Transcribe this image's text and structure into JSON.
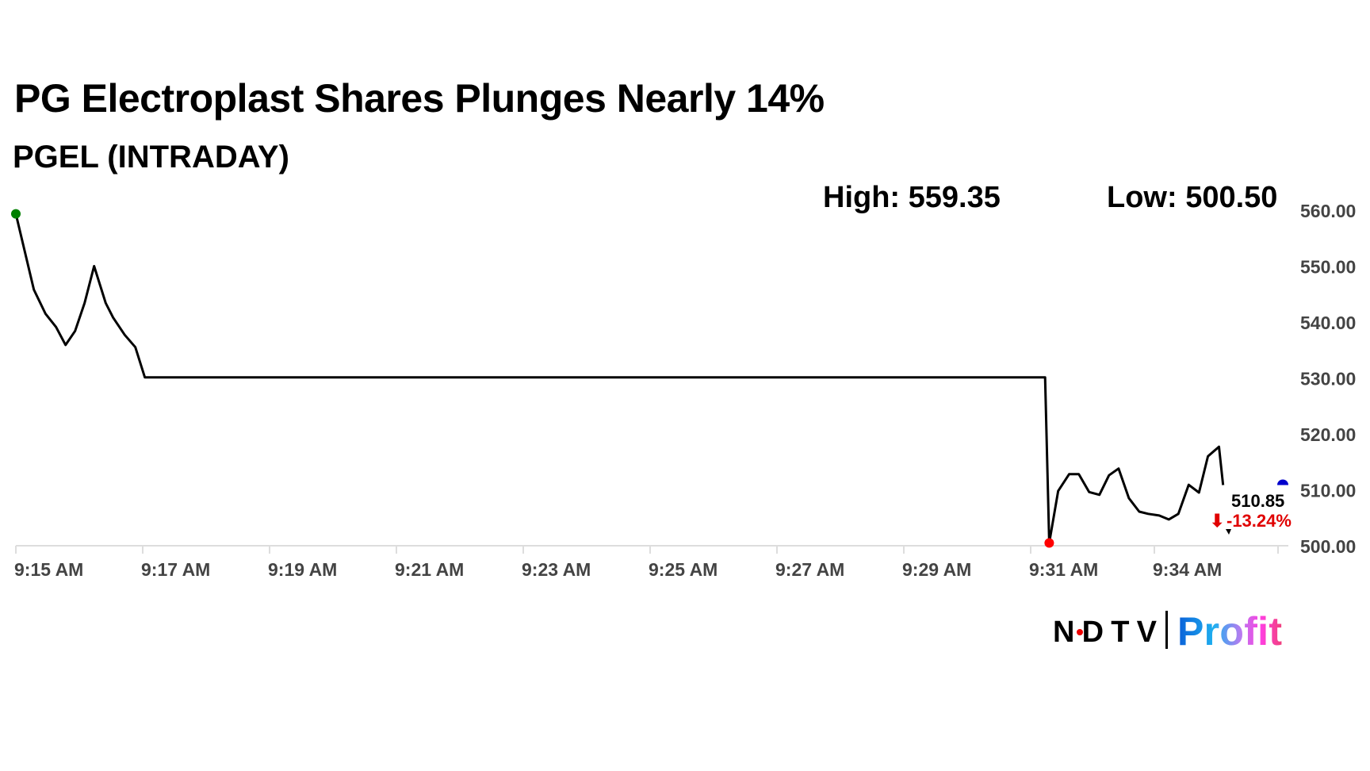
{
  "title": "PG Electroplast Shares Plunges Nearly 14%",
  "subtitle": "PGEL (INTRADAY)",
  "high_label": "High: 559.35",
  "low_label": "Low: 500.50",
  "last_price": "510.85",
  "change": "-13.24%",
  "change_arrow": "⬇",
  "logo": {
    "ndtv": "NDTV",
    "profit": "Profit"
  },
  "colors": {
    "line": "#000000",
    "start_marker": "#008000",
    "low_marker": "#ff0000",
    "current_marker": "#0000cc",
    "change": "#e00000",
    "axis_text": "#444444"
  },
  "chart_data": {
    "type": "line",
    "title": "PG Electroplast Shares Plunges Nearly 14%",
    "subtitle": "PGEL (INTRADAY)",
    "ylim": [
      500,
      560
    ],
    "yticks": [
      "500.00",
      "510.00",
      "520.00",
      "530.00",
      "540.00",
      "550.00",
      "560.00"
    ],
    "xticks": [
      "9:15 AM",
      "9:17 AM",
      "9:19 AM",
      "9:21 AM",
      "9:23 AM",
      "9:25 AM",
      "9:27 AM",
      "9:29 AM",
      "9:31 AM",
      "9:34 AM"
    ],
    "grid": false,
    "points": [
      [
        "9:15:00",
        559.35
      ],
      [
        "9:15:17",
        545.8
      ],
      [
        "9:15:28",
        541.5
      ],
      [
        "9:15:38",
        539.1
      ],
      [
        "9:15:47",
        535.9
      ],
      [
        "9:15:56",
        538.4
      ],
      [
        "9:16:05",
        543.4
      ],
      [
        "9:16:14",
        550.0
      ],
      [
        "9:16:25",
        543.4
      ],
      [
        "9:16:32",
        540.8
      ],
      [
        "9:16:43",
        537.7
      ],
      [
        "9:16:53",
        535.5
      ],
      [
        "9:17:02",
        530.1
      ],
      [
        "9:31:21",
        530.1
      ],
      [
        "9:31:27",
        500.5
      ],
      [
        "9:31:40",
        509.8
      ],
      [
        "9:31:56",
        512.8
      ],
      [
        "9:32:10",
        512.8
      ],
      [
        "9:32:25",
        509.6
      ],
      [
        "9:32:40",
        509.1
      ],
      [
        "9:32:54",
        512.6
      ],
      [
        "9:33:08",
        513.8
      ],
      [
        "9:33:23",
        508.5
      ],
      [
        "9:33:38",
        506.1
      ],
      [
        "9:33:51",
        505.7
      ],
      [
        "9:34:07",
        505.4
      ],
      [
        "9:34:21",
        504.7
      ],
      [
        "9:34:35",
        505.7
      ],
      [
        "9:34:50",
        510.9
      ],
      [
        "9:35:05",
        509.5
      ],
      [
        "9:35:18",
        516.0
      ],
      [
        "9:35:34",
        517.7
      ],
      [
        "9:35:40",
        510.85
      ]
    ]
  }
}
